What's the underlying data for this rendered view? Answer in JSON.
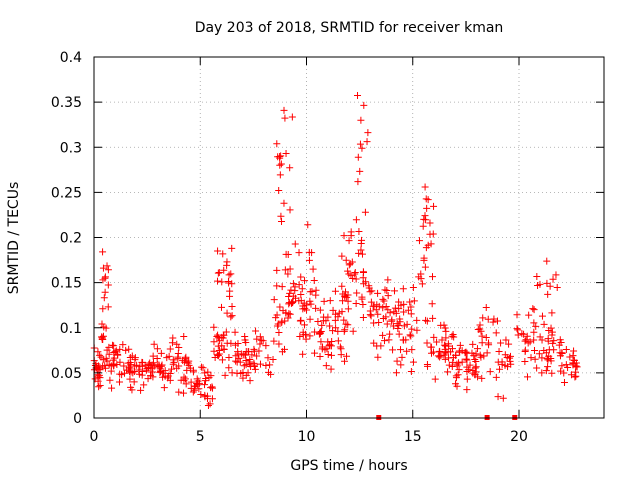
{
  "chart_data": {
    "type": "scatter",
    "title": "Day 203 of 2018, SRMTID for receiver kman",
    "xlabel": "GPS time / hours",
    "ylabel": "SRMTID / TECUs",
    "xlim": [
      0,
      24
    ],
    "ylim": [
      0,
      0.4
    ],
    "grid": true,
    "marker": "+",
    "marker_color": "#ff0000",
    "xticks": [
      0,
      5,
      10,
      15,
      20
    ],
    "xtick_labels": [
      "0",
      "5",
      "10",
      "15",
      "20"
    ],
    "yticks": [
      0,
      0.05,
      0.1,
      0.15,
      0.2,
      0.25,
      0.3,
      0.35,
      0.4
    ],
    "ytick_labels": [
      "0",
      "0.05",
      "0.1",
      "0.15",
      "0.2",
      "0.25",
      "0.3",
      "0.35",
      "0.4"
    ],
    "zero_markers_x": [
      13.4,
      18.5,
      19.8
    ],
    "envelope": [
      {
        "range": [
          0.0,
          0.3
        ],
        "center": 0.055,
        "spread": 0.025,
        "n": 22
      },
      {
        "range": [
          0.3,
          0.7
        ],
        "center": 0.08,
        "spread": 0.04,
        "n": 18
      },
      {
        "range": [
          0.4,
          0.7
        ],
        "center": 0.15,
        "spread": 0.06,
        "n": 12
      },
      {
        "range": [
          0.7,
          1.5
        ],
        "center": 0.06,
        "spread": 0.03,
        "n": 28
      },
      {
        "range": [
          1.5,
          2.5
        ],
        "center": 0.055,
        "spread": 0.025,
        "n": 35
      },
      {
        "range": [
          2.5,
          3.5
        ],
        "center": 0.055,
        "spread": 0.03,
        "n": 35
      },
      {
        "range": [
          3.5,
          4.5
        ],
        "center": 0.06,
        "spread": 0.035,
        "n": 35
      },
      {
        "range": [
          4.5,
          5.6
        ],
        "center": 0.035,
        "spread": 0.025,
        "n": 35
      },
      {
        "range": [
          5.6,
          6.5
        ],
        "center": 0.08,
        "spread": 0.04,
        "n": 30
      },
      {
        "range": [
          5.7,
          6.5
        ],
        "center": 0.16,
        "spread": 0.06,
        "n": 20
      },
      {
        "range": [
          6.5,
          8.3
        ],
        "center": 0.07,
        "spread": 0.03,
        "n": 55
      },
      {
        "range": [
          8.3,
          9.5
        ],
        "center": 0.12,
        "spread": 0.08,
        "n": 45
      },
      {
        "range": [
          8.6,
          9.4
        ],
        "center": 0.28,
        "spread": 0.08,
        "n": 18
      },
      {
        "range": [
          9.5,
          10.5
        ],
        "center": 0.14,
        "spread": 0.08,
        "n": 40
      },
      {
        "range": [
          10.5,
          12.0
        ],
        "center": 0.1,
        "spread": 0.05,
        "n": 55
      },
      {
        "range": [
          11.5,
          13.0
        ],
        "center": 0.16,
        "spread": 0.08,
        "n": 45
      },
      {
        "range": [
          12.4,
          12.9
        ],
        "center": 0.3,
        "spread": 0.08,
        "n": 10
      },
      {
        "range": [
          13.0,
          14.0
        ],
        "center": 0.11,
        "spread": 0.05,
        "n": 35
      },
      {
        "range": [
          14.0,
          15.2
        ],
        "center": 0.1,
        "spread": 0.06,
        "n": 45
      },
      {
        "range": [
          15.2,
          16.0
        ],
        "center": 0.2,
        "spread": 0.09,
        "n": 25
      },
      {
        "range": [
          15.5,
          17.0
        ],
        "center": 0.075,
        "spread": 0.04,
        "n": 45
      },
      {
        "range": [
          17.0,
          18.0
        ],
        "center": 0.055,
        "spread": 0.03,
        "n": 40
      },
      {
        "range": [
          18.0,
          19.0
        ],
        "center": 0.085,
        "spread": 0.05,
        "n": 25
      },
      {
        "range": [
          19.0,
          19.7
        ],
        "center": 0.06,
        "spread": 0.04,
        "n": 18
      },
      {
        "range": [
          19.9,
          22.0
        ],
        "center": 0.085,
        "spread": 0.045,
        "n": 60
      },
      {
        "range": [
          20.3,
          21.9
        ],
        "center": 0.15,
        "spread": 0.03,
        "n": 10
      },
      {
        "range": [
          22.0,
          22.8
        ],
        "center": 0.06,
        "spread": 0.025,
        "n": 25
      }
    ]
  }
}
